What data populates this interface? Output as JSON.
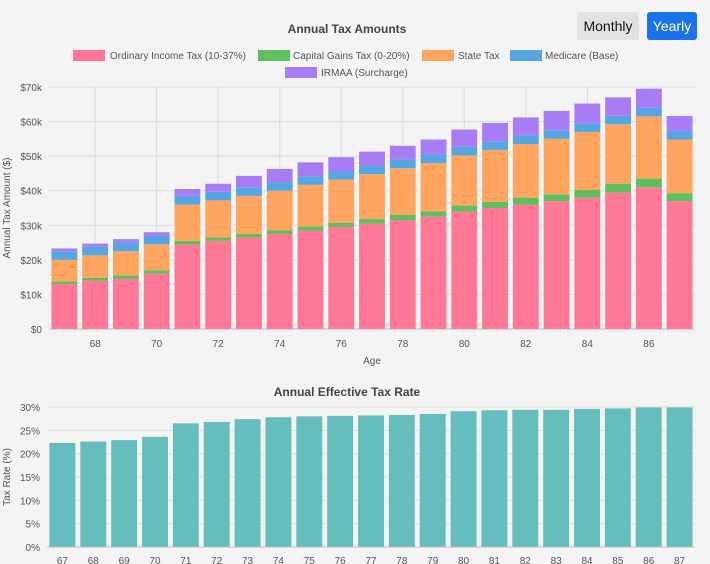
{
  "controls": {
    "monthly_label": "Monthly",
    "yearly_label": "Yearly",
    "active": "Yearly"
  },
  "colors": {
    "ordinary": "#ff7896",
    "capgains": "#5fbe5e",
    "state": "#ffa55f",
    "medicare": "#56a6e2",
    "irmaa": "#a87cf5",
    "rate": "#66bdbd",
    "grid": "#dcdcdc",
    "text": "#555555",
    "title": "#444444"
  },
  "chart_data": [
    {
      "type": "bar",
      "stacked": true,
      "title": "Annual Tax Amounts",
      "xlabel": "Age",
      "ylabel": "Annual Tax Amount ($)",
      "ylim": [
        0,
        70000
      ],
      "yticks": [
        "$0",
        "$10k",
        "$20k",
        "$30k",
        "$40k",
        "$50k",
        "$60k",
        "$70k"
      ],
      "xtick_labels": [
        "68",
        "70",
        "72",
        "74",
        "76",
        "78",
        "80",
        "82",
        "84",
        "86"
      ],
      "legend_position": "top",
      "categories": [
        67,
        68,
        69,
        70,
        71,
        72,
        73,
        74,
        75,
        76,
        77,
        78,
        79,
        80,
        81,
        82,
        83,
        84,
        85,
        86,
        87
      ],
      "series": [
        {
          "name": "Ordinary Income Tax (10-37%)",
          "color_key": "ordinary",
          "values": [
            13000,
            14000,
            14500,
            16000,
            24500,
            25500,
            26500,
            27500,
            28500,
            29500,
            30500,
            31500,
            32500,
            34000,
            35000,
            36000,
            37000,
            38000,
            39500,
            41000,
            37000
          ]
        },
        {
          "name": "Capital Gains Tax (0-20%)",
          "color_key": "capgains",
          "values": [
            800,
            800,
            1000,
            1000,
            1000,
            1000,
            1000,
            1000,
            1200,
            1200,
            1300,
            1500,
            1500,
            1700,
            1800,
            2000,
            2000,
            2200,
            2500,
            2500,
            2300
          ]
        },
        {
          "name": "State Tax",
          "color_key": "state",
          "values": [
            6200,
            6500,
            7000,
            7500,
            10500,
            10700,
            11000,
            11500,
            12000,
            12500,
            13000,
            13500,
            14000,
            14500,
            15000,
            15500,
            16000,
            16800,
            17200,
            18000,
            15500
          ]
        },
        {
          "name": "Medicare (Base)",
          "color_key": "medicare",
          "values": [
            2500,
            2500,
            2500,
            2500,
            2500,
            2500,
            2500,
            2500,
            2500,
            2500,
            2500,
            2500,
            2500,
            2500,
            2500,
            2500,
            2500,
            2500,
            2500,
            2500,
            2500
          ]
        },
        {
          "name": "IRMAA (Surcharge)",
          "color_key": "irmaa",
          "values": [
            800,
            900,
            1000,
            1000,
            2000,
            2300,
            3300,
            3800,
            4000,
            4000,
            4000,
            4000,
            4300,
            5000,
            5300,
            5200,
            5600,
            5700,
            5300,
            5500,
            4300
          ]
        }
      ]
    },
    {
      "type": "bar",
      "title": "Annual Effective Tax Rate",
      "xlabel": "",
      "ylabel": "Tax Rate (%)",
      "ylim": [
        0,
        30
      ],
      "yticks": [
        "0%",
        "5%",
        "10%",
        "15%",
        "20%",
        "25%",
        "30%"
      ],
      "categories": [
        67,
        68,
        69,
        70,
        71,
        72,
        73,
        74,
        75,
        76,
        77,
        78,
        79,
        80,
        81,
        82,
        83,
        84,
        85,
        86,
        87
      ],
      "xtick_labels": [
        "67",
        "68",
        "69",
        "70",
        "71",
        "72",
        "73",
        "74",
        "75",
        "76",
        "77",
        "78",
        "79",
        "80",
        "81",
        "82",
        "83",
        "84",
        "85",
        "86",
        "87"
      ],
      "values": [
        22.3,
        22.6,
        22.9,
        23.6,
        26.5,
        26.8,
        27.4,
        27.8,
        28.0,
        28.1,
        28.2,
        28.3,
        28.5,
        29.1,
        29.3,
        29.4,
        29.4,
        29.6,
        29.7,
        29.9,
        29.9
      ],
      "color_key": "rate"
    }
  ]
}
